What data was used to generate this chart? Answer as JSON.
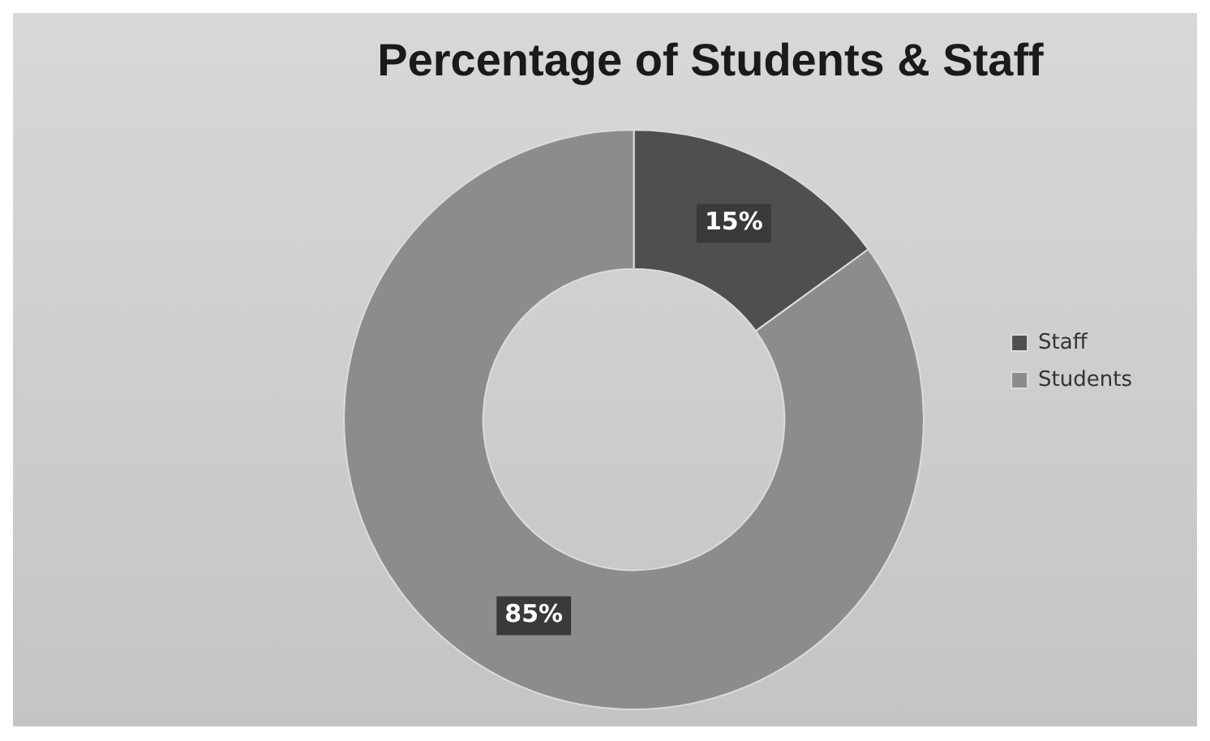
{
  "chart_data": {
    "type": "donut",
    "title": "Percentage of Students & Staff",
    "categories": [
      "Staff",
      "Students"
    ],
    "values": [
      15,
      85
    ],
    "colors": [
      "#4f4f4f",
      "#8c8c8c"
    ],
    "value_labels": [
      "15%",
      "85%"
    ],
    "legend": "right"
  }
}
